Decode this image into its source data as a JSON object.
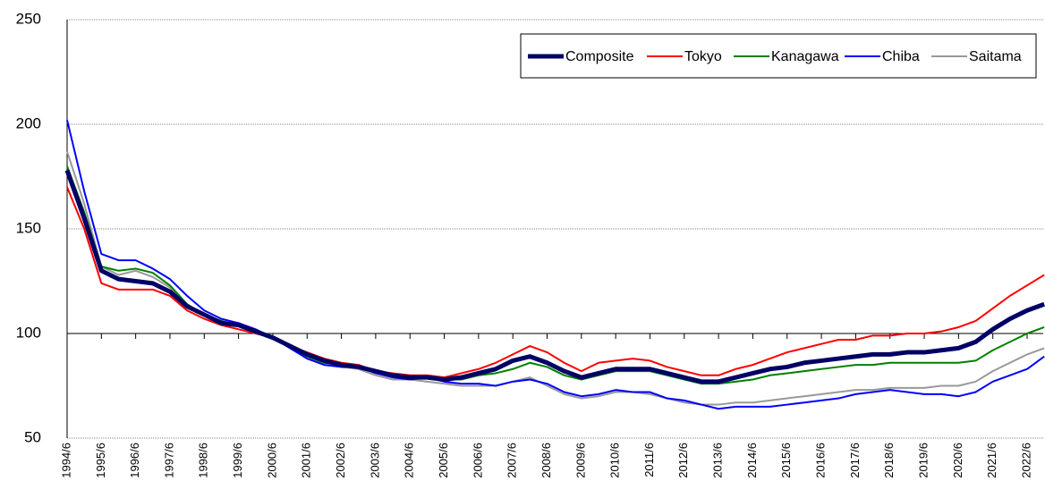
{
  "chart_data": {
    "type": "line",
    "categories": [
      "1994/6",
      null,
      "1995/6",
      null,
      "1996/6",
      null,
      "1997/6",
      null,
      "1998/6",
      null,
      "1999/6",
      null,
      "2000/6",
      null,
      "2001/6",
      null,
      "2002/6",
      null,
      "2003/6",
      null,
      "2004/6",
      null,
      "2005/6",
      null,
      "2006/6",
      null,
      "2007/6",
      null,
      "2008/6",
      null,
      "2009/6",
      null,
      "2010/6",
      null,
      "2011/6",
      null,
      "2012/6",
      null,
      "2013/6",
      null,
      "2014/6",
      null,
      "2015/6",
      null,
      "2016/6",
      null,
      "2017/6",
      null,
      "2018/6",
      null,
      "2019/6",
      null,
      "2020/6",
      null,
      "2021/6",
      null,
      "2022/6",
      null
    ],
    "series": [
      {
        "name": "Composite",
        "color": "#000066",
        "line_width": 5,
        "values": [
          178,
          155,
          130,
          126,
          125,
          124,
          120,
          113,
          109,
          105,
          104,
          101,
          98,
          94,
          90,
          87,
          85,
          84,
          82,
          80,
          79,
          79,
          78,
          79,
          81,
          83,
          87,
          89,
          86,
          82,
          79,
          81,
          83,
          83,
          83,
          81,
          79,
          77,
          77,
          79,
          81,
          83,
          84,
          86,
          87,
          88,
          89,
          90,
          90,
          91,
          91,
          92,
          93,
          96,
          102,
          107,
          111,
          114
        ]
      },
      {
        "name": "Tokyo",
        "color": "#ff0000",
        "line_width": 2,
        "values": [
          170,
          150,
          124,
          121,
          121,
          121,
          118,
          111,
          107,
          104,
          102,
          100,
          98,
          94,
          91,
          88,
          86,
          85,
          82,
          81,
          80,
          80,
          79,
          81,
          83,
          86,
          90,
          94,
          91,
          86,
          82,
          86,
          87,
          88,
          87,
          84,
          82,
          80,
          80,
          83,
          85,
          88,
          91,
          93,
          95,
          97,
          97,
          99,
          99,
          100,
          100,
          101,
          103,
          106,
          112,
          118,
          123,
          128
        ]
      },
      {
        "name": "Kanagawa",
        "color": "#008000",
        "line_width": 2,
        "values": [
          180,
          158,
          132,
          130,
          131,
          129,
          123,
          114,
          109,
          106,
          104,
          101,
          98,
          94,
          89,
          86,
          85,
          84,
          82,
          80,
          79,
          79,
          78,
          78,
          80,
          81,
          83,
          86,
          84,
          80,
          78,
          80,
          82,
          82,
          82,
          80,
          78,
          76,
          76,
          77,
          78,
          80,
          81,
          82,
          83,
          84,
          85,
          85,
          86,
          86,
          86,
          86,
          86,
          87,
          92,
          96,
          100,
          103
        ]
      },
      {
        "name": "Chiba",
        "color": "#0000ff",
        "line_width": 2,
        "values": [
          202,
          168,
          138,
          135,
          135,
          131,
          126,
          118,
          111,
          107,
          105,
          102,
          98,
          93,
          88,
          85,
          84,
          84,
          81,
          79,
          78,
          79,
          77,
          76,
          76,
          75,
          77,
          78,
          76,
          72,
          70,
          71,
          73,
          72,
          72,
          69,
          68,
          66,
          64,
          65,
          65,
          65,
          66,
          67,
          68,
          69,
          71,
          72,
          73,
          72,
          71,
          71,
          70,
          72,
          77,
          80,
          83,
          89
        ]
      },
      {
        "name": "Saitama",
        "color": "#999999",
        "line_width": 2,
        "values": [
          187,
          162,
          132,
          128,
          130,
          127,
          122,
          113,
          109,
          106,
          104,
          101,
          98,
          94,
          88,
          85,
          84,
          83,
          80,
          78,
          78,
          77,
          76,
          75,
          75,
          75,
          77,
          79,
          75,
          71,
          69,
          70,
          72,
          72,
          71,
          69,
          67,
          66,
          66,
          67,
          67,
          68,
          69,
          70,
          71,
          72,
          73,
          73,
          74,
          74,
          74,
          75,
          75,
          77,
          82,
          86,
          90,
          93
        ]
      }
    ],
    "ylim": [
      50,
      250
    ],
    "yticks": [
      50,
      100,
      150,
      200,
      250
    ],
    "xaxis_at": 100,
    "grid": true,
    "legend": "top-right"
  }
}
